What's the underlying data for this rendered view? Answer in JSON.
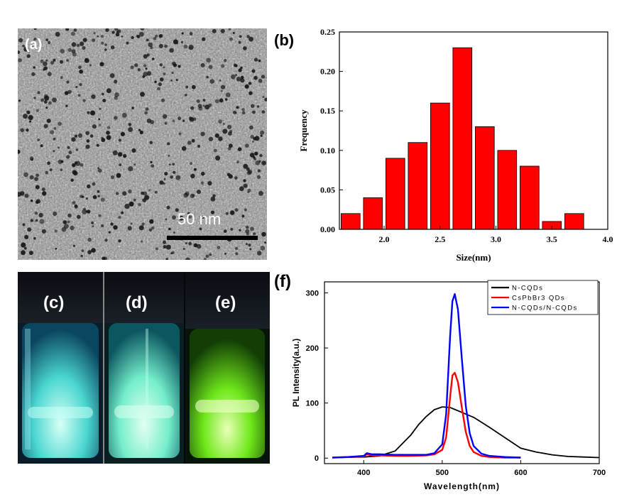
{
  "panels": {
    "a": {
      "label": "(a)",
      "scale_bar_label": "50 nm"
    },
    "b": {
      "label": "(b)"
    },
    "c": {
      "label": "(c)"
    },
    "d": {
      "label": "(d)"
    },
    "e": {
      "label": "(e)"
    },
    "f": {
      "label": "(f)"
    }
  },
  "colors": {
    "bar_fill": "#ff0000",
    "vial_c": "#3fd9d0",
    "vial_d": "#6ff0c8",
    "vial_e": "#6fe81a",
    "n_cqds": "#000000",
    "cspbbr3": "#ff0000",
    "composite": "#0000ff"
  },
  "chart_data": [
    {
      "type": "bar",
      "panel": "b",
      "title": "",
      "xlabel": "Size(nm)",
      "ylabel": "Frequency",
      "x": [
        1.7,
        1.9,
        2.1,
        2.3,
        2.5,
        2.7,
        2.9,
        3.1,
        3.3,
        3.5,
        3.7
      ],
      "values": [
        0.02,
        0.04,
        0.09,
        0.11,
        0.16,
        0.23,
        0.13,
        0.1,
        0.08,
        0.01,
        0.02
      ],
      "bar_width": 0.17,
      "xlim": [
        1.6,
        4.0
      ],
      "ylim": [
        0,
        0.25
      ],
      "xticks": [
        "2.0",
        "2.5",
        "3.0",
        "3.5",
        "4.0"
      ],
      "yticks": [
        "0.00",
        "0.05",
        "0.10",
        "0.15",
        "0.20",
        "0.25"
      ],
      "grid": false
    },
    {
      "type": "line",
      "panel": "f",
      "title": "",
      "xlabel": "Wavelength(nm)",
      "ylabel": "PL Intensity(a.u.)",
      "xlim": [
        350,
        700
      ],
      "ylim": [
        -10,
        320
      ],
      "xticks": [
        "400",
        "500",
        "600",
        "700"
      ],
      "yticks": [
        "0",
        "100",
        "200",
        "300"
      ],
      "legend_position": "top-right",
      "series": [
        {
          "name": "N-CQDs",
          "x": [
            360,
            400,
            420,
            440,
            460,
            470,
            480,
            490,
            500,
            510,
            520,
            530,
            540,
            560,
            580,
            600,
            620,
            640,
            660,
            680,
            700
          ],
          "y": [
            1,
            2,
            4,
            13,
            42,
            61,
            76,
            88,
            93,
            92,
            86,
            80,
            74,
            56,
            37,
            18,
            11,
            6,
            3,
            2,
            1
          ]
        },
        {
          "name": "CsPbBr3 QDs",
          "x": [
            360,
            380,
            400,
            404,
            410,
            420,
            440,
            460,
            480,
            490,
            500,
            505,
            510,
            513,
            516,
            520,
            525,
            530,
            535,
            540,
            550,
            560,
            580,
            600
          ],
          "y": [
            1,
            2,
            3,
            7,
            5,
            5,
            4,
            4,
            5,
            7,
            15,
            38,
            110,
            150,
            155,
            138,
            92,
            48,
            22,
            11,
            4,
            2,
            1,
            1
          ]
        },
        {
          "name": "N-CQDs/N-CQDs",
          "x": [
            360,
            380,
            400,
            404,
            410,
            420,
            440,
            460,
            480,
            490,
            500,
            505,
            510,
            513,
            516,
            520,
            525,
            530,
            535,
            540,
            550,
            560,
            580,
            600
          ],
          "y": [
            1,
            2,
            4,
            9,
            7,
            7,
            6,
            6,
            6,
            9,
            25,
            80,
            220,
            285,
            298,
            270,
            180,
            95,
            45,
            22,
            8,
            4,
            2,
            1
          ]
        }
      ]
    }
  ]
}
